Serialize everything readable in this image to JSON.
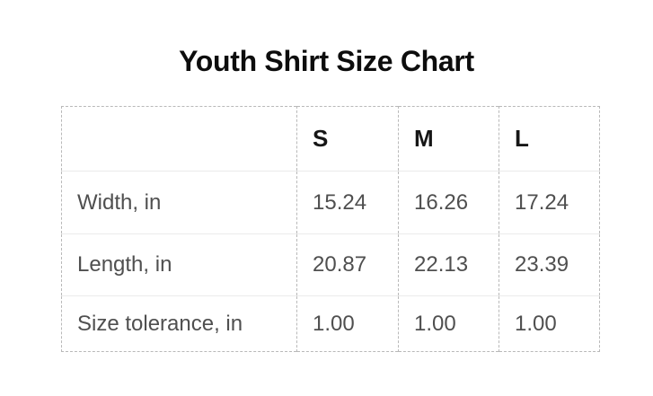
{
  "title": "Youth Shirt Size Chart",
  "table": {
    "corner_label": "",
    "columns": [
      "S",
      "M",
      "L"
    ],
    "rows": [
      {
        "label": "Width, in",
        "values": [
          "15.24",
          "16.26",
          "17.24"
        ]
      },
      {
        "label": "Length, in",
        "values": [
          "20.87",
          "22.13",
          "23.39"
        ]
      },
      {
        "label": "Size tolerance, in",
        "values": [
          "1.00",
          "1.00",
          "1.00"
        ]
      }
    ]
  },
  "chart_data": {
    "type": "table",
    "title": "Youth Shirt Size Chart",
    "columns": [
      "",
      "S",
      "M",
      "L"
    ],
    "rows": [
      [
        "Width, in",
        15.24,
        16.26,
        17.24
      ],
      [
        "Length, in",
        20.87,
        22.13,
        23.39
      ],
      [
        "Size tolerance, in",
        1.0,
        1.0,
        1.0
      ]
    ],
    "units": "inches"
  },
  "colors": {
    "background": "#ffffff",
    "heading_text": "#0d0d0d",
    "header_text": "#161616",
    "body_text": "#4f4f4f",
    "dashed_border": "#b9b9b9",
    "row_divider": "#ebebeb"
  }
}
